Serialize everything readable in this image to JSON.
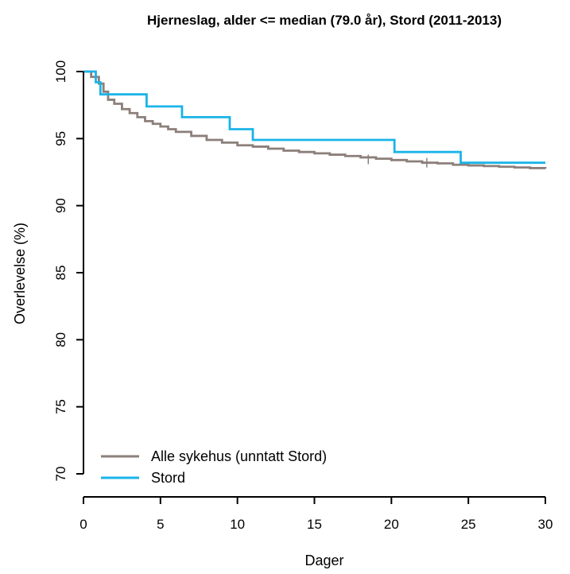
{
  "chart_data": {
    "type": "line",
    "title": "Hjerneslag, alder <= median (79.0 år), Stord (2011-2013)",
    "xlabel": "Dager",
    "ylabel": "Overlevelse (%)",
    "xlim": [
      0,
      30
    ],
    "ylim": [
      70,
      100
    ],
    "x_ticks": [
      0,
      5,
      10,
      15,
      20,
      25,
      30
    ],
    "y_ticks": [
      70,
      75,
      80,
      85,
      90,
      95,
      100
    ],
    "grid": false,
    "legend_position": "bottom-left",
    "series": [
      {
        "name": "Alle sykehus (unntatt Stord)",
        "color": "#8c7f7a",
        "step": true,
        "x": [
          0,
          0.5,
          1,
          1.3,
          1.6,
          2,
          2.5,
          3,
          3.5,
          4,
          4.5,
          5,
          5.5,
          6,
          7,
          8,
          9,
          10,
          11,
          12,
          13,
          14,
          15,
          16,
          17,
          18,
          19,
          20,
          21,
          22,
          23,
          24,
          25,
          26,
          27,
          28,
          29,
          30
        ],
        "y": [
          100,
          99.6,
          99.1,
          98.5,
          97.9,
          97.6,
          97.2,
          96.9,
          96.6,
          96.3,
          96.1,
          95.9,
          95.7,
          95.5,
          95.2,
          94.9,
          94.7,
          94.5,
          94.4,
          94.25,
          94.1,
          94.0,
          93.9,
          93.8,
          93.7,
          93.6,
          93.5,
          93.4,
          93.3,
          93.2,
          93.15,
          93.05,
          93.0,
          92.95,
          92.9,
          92.85,
          92.8,
          92.75
        ],
        "censor_x": [
          18.5,
          22.3
        ],
        "censor_y": [
          93.45,
          93.2
        ]
      },
      {
        "name": "Stord",
        "color": "#1ab4e8",
        "step": true,
        "x": [
          0,
          0.8,
          1.1,
          4.1,
          6.4,
          9.5,
          11.0,
          20.2,
          24.5,
          30
        ],
        "y": [
          100,
          99.2,
          98.3,
          97.4,
          96.6,
          95.7,
          94.9,
          94.0,
          93.2,
          93.2
        ]
      }
    ]
  }
}
